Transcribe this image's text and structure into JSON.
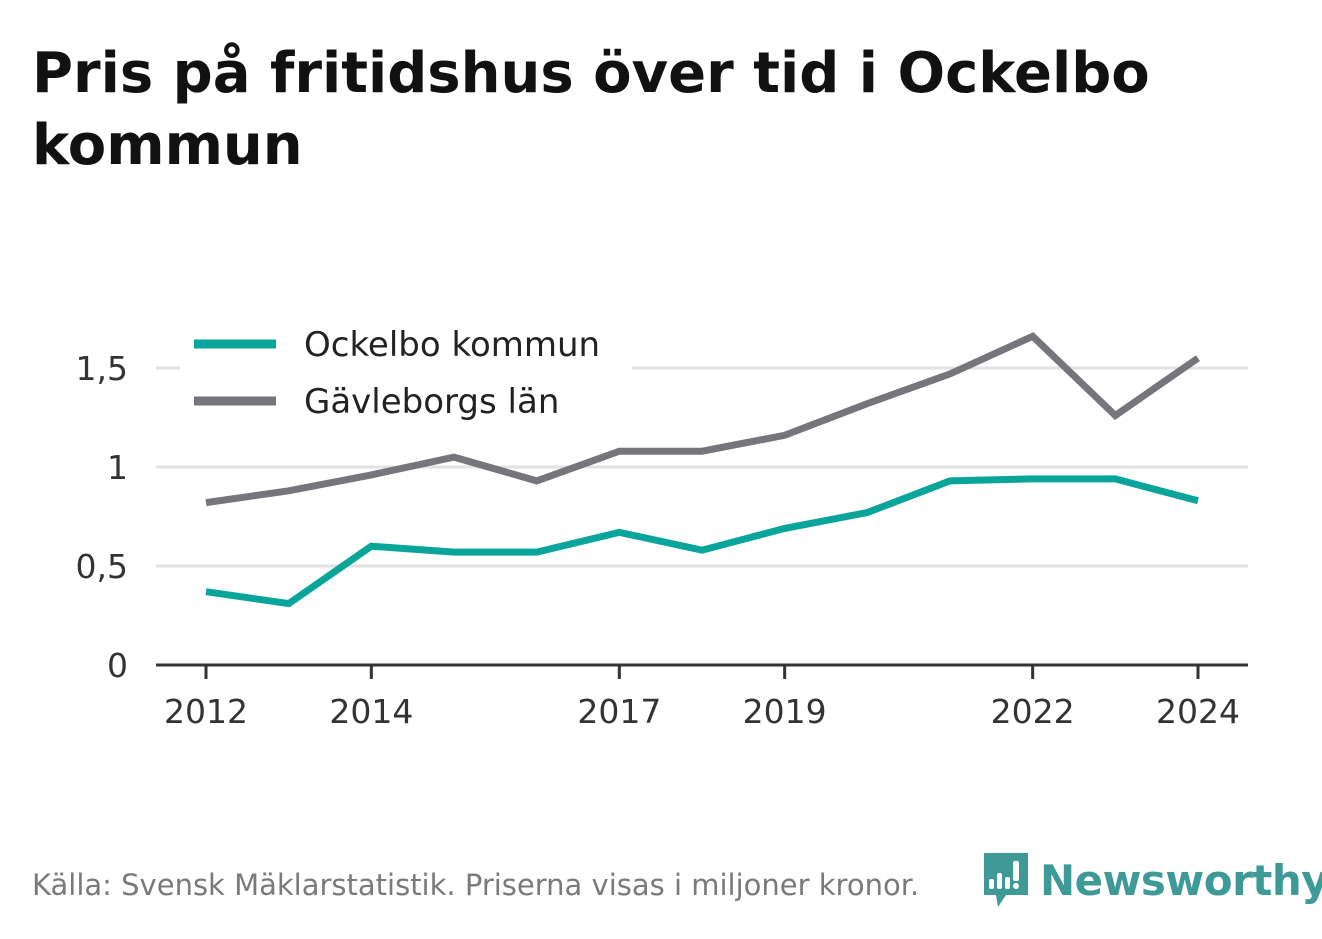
{
  "title": "Pris på fritidshus över tid i Ockelbo kommun",
  "footer": {
    "source": "Källa: Svensk Mäklarstatistik. Priserna visas i miljoner kronor.",
    "brand": "Newsworthy"
  },
  "colors": {
    "ockelbo": "#0aa59a",
    "gavleborg": "#75757c",
    "grid": "#e2e2e2",
    "axis": "#333333"
  },
  "chart_data": {
    "type": "line",
    "x": [
      2012,
      2013,
      2014,
      2015,
      2016,
      2017,
      2018,
      2019,
      2020,
      2021,
      2022,
      2023,
      2024
    ],
    "x_ticks": [
      2012,
      2014,
      2017,
      2019,
      2022,
      2024
    ],
    "x_tick_labels": [
      "2012",
      "2014",
      "2017",
      "2019",
      "2022",
      "2024"
    ],
    "y_ticks": [
      0,
      0.5,
      1,
      1.5
    ],
    "y_tick_labels": [
      "0",
      "0,5",
      "1",
      "1,5"
    ],
    "ylim": [
      0,
      1.7
    ],
    "grid": true,
    "legend": "top-left",
    "series": [
      {
        "name": "Ockelbo kommun",
        "color": "#0aa59a",
        "values": [
          0.37,
          0.31,
          0.6,
          0.57,
          0.57,
          0.67,
          0.58,
          0.69,
          0.77,
          0.93,
          0.94,
          0.94,
          0.83
        ]
      },
      {
        "name": "Gävleborgs län",
        "color": "#75757c",
        "values": [
          0.82,
          0.88,
          0.96,
          1.05,
          0.93,
          1.08,
          1.08,
          1.16,
          1.32,
          1.47,
          1.66,
          1.26,
          1.55
        ]
      }
    ]
  }
}
